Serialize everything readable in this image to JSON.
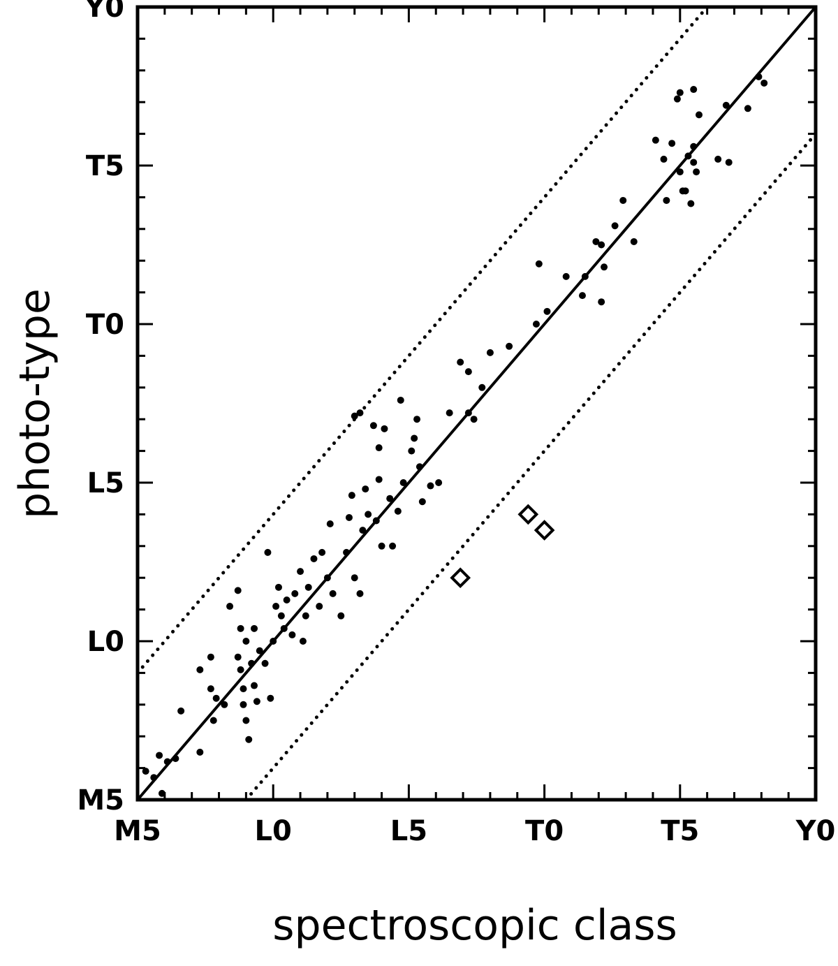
{
  "chart_data": {
    "type": "scatter",
    "xlabel": "spectroscopic class",
    "ylabel": "photo-type",
    "xlim": [
      5,
      30
    ],
    "ylim": [
      5,
      30
    ],
    "xticks": [
      {
        "value": 5,
        "label": "M5"
      },
      {
        "value": 10,
        "label": "L0"
      },
      {
        "value": 15,
        "label": "L5"
      },
      {
        "value": 20,
        "label": "T0"
      },
      {
        "value": 25,
        "label": "T5"
      },
      {
        "value": 30,
        "label": "Y0"
      }
    ],
    "yticks": [
      {
        "value": 5,
        "label": "M5"
      },
      {
        "value": 10,
        "label": "L0"
      },
      {
        "value": 15,
        "label": "L5"
      },
      {
        "value": 20,
        "label": "T0"
      },
      {
        "value": 25,
        "label": "T5"
      },
      {
        "value": 30,
        "label": "Y0"
      }
    ],
    "xminorticks": [
      6,
      7,
      8,
      9,
      11,
      12,
      13,
      14,
      16,
      17,
      18,
      19,
      21,
      22,
      23,
      24,
      26,
      27,
      28,
      29
    ],
    "yminorticks": [
      6,
      7,
      8,
      9,
      11,
      12,
      13,
      14,
      16,
      17,
      18,
      19,
      21,
      22,
      23,
      24,
      26,
      27,
      28,
      29
    ],
    "lines": [
      {
        "style": "solid",
        "x": [
          5,
          30
        ],
        "y": [
          5,
          30
        ]
      },
      {
        "style": "dotted",
        "x": [
          5,
          26
        ],
        "y": [
          9,
          30
        ]
      },
      {
        "style": "dotted",
        "x": [
          9,
          30
        ],
        "y": [
          5,
          26
        ]
      }
    ],
    "series": [
      {
        "marker": "dot",
        "color": "#000000",
        "x": [
          5.3,
          5.8,
          6.1,
          5.9,
          5.6,
          6.4,
          6.6,
          7.3,
          7.3,
          7.7,
          7.7,
          7.9,
          7.8,
          8.2,
          8.4,
          8.7,
          8.7,
          8.8,
          8.8,
          8.9,
          8.9,
          9.0,
          9.0,
          9.1,
          9.2,
          9.3,
          9.3,
          9.4,
          9.5,
          9.7,
          9.8,
          9.9,
          10.0,
          10.1,
          10.2,
          10.3,
          10.4,
          10.5,
          10.7,
          10.8,
          11.0,
          11.2,
          11.1,
          11.3,
          11.5,
          11.7,
          11.8,
          12.0,
          12.1,
          12.2,
          12.5,
          12.7,
          12.8,
          12.9,
          13.0,
          13.2,
          13.3,
          13.0,
          13.2,
          13.4,
          13.5,
          13.7,
          13.8,
          13.9,
          13.9,
          14.0,
          14.1,
          14.3,
          14.4,
          14.6,
          14.7,
          14.8,
          15.1,
          15.2,
          15.3,
          15.4,
          15.5,
          15.8,
          16.1,
          16.5,
          16.9,
          17.2,
          17.2,
          17.4,
          17.7,
          18.0,
          18.7,
          19.7,
          19.8,
          20.1,
          20.8,
          21.4,
          21.5,
          21.9,
          22.1,
          22.1,
          22.2,
          22.6,
          22.9,
          23.3,
          24.1,
          24.4,
          24.5,
          24.7,
          24.9,
          25.0,
          25.0,
          25.1,
          25.2,
          25.3,
          25.4,
          25.5,
          25.5,
          25.5,
          25.6,
          25.7,
          26.4,
          26.7,
          26.8,
          27.5,
          27.9,
          28.1
        ],
        "values": [
          5.9,
          6.4,
          6.2,
          5.2,
          5.7,
          6.3,
          7.8,
          6.5,
          9.1,
          9.5,
          8.5,
          8.2,
          7.5,
          8.0,
          11.1,
          9.5,
          11.6,
          10.4,
          9.1,
          8.5,
          8.0,
          7.5,
          10.0,
          6.9,
          9.3,
          10.4,
          8.6,
          8.1,
          9.7,
          9.3,
          12.8,
          8.2,
          10.0,
          11.1,
          11.7,
          10.8,
          10.4,
          11.3,
          10.2,
          11.5,
          12.2,
          10.8,
          10.0,
          11.7,
          12.6,
          11.1,
          12.8,
          12.0,
          13.7,
          11.5,
          10.8,
          12.8,
          13.9,
          14.6,
          12.0,
          11.5,
          13.5,
          17.1,
          17.2,
          14.8,
          14.0,
          16.8,
          13.8,
          16.1,
          15.1,
          13.0,
          16.7,
          14.5,
          13.0,
          14.1,
          17.6,
          15.0,
          16.0,
          16.4,
          17.0,
          15.5,
          14.4,
          14.9,
          15.0,
          17.2,
          18.8,
          18.5,
          17.2,
          17.0,
          18.0,
          19.1,
          19.3,
          20.0,
          21.9,
          20.4,
          21.5,
          20.9,
          21.5,
          22.6,
          20.7,
          22.5,
          21.8,
          23.1,
          23.9,
          22.6,
          25.8,
          25.2,
          23.9,
          25.7,
          27.1,
          27.3,
          24.8,
          24.2,
          24.2,
          25.3,
          23.8,
          25.1,
          25.6,
          27.4,
          24.8,
          26.6,
          25.2,
          26.9,
          25.1,
          26.8,
          27.8,
          27.6
        ]
      },
      {
        "marker": "diamond",
        "color": "#000000",
        "x": [
          16.9,
          19.4,
          20.0
        ],
        "values": [
          12.0,
          14.0,
          13.5
        ]
      }
    ]
  }
}
